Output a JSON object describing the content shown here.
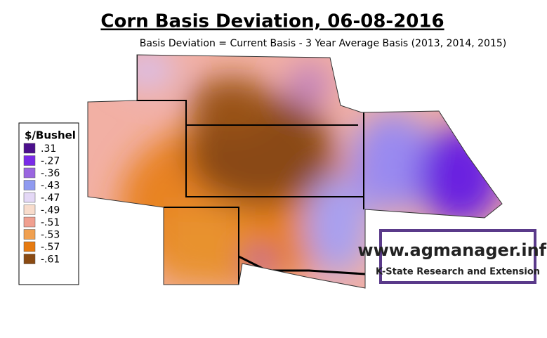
{
  "title": "Corn Basis Deviation, 06-08-2016",
  "subtitle": "Basis Deviation = Current Basis - 3 Year Average Basis (2013, 2014, 2015)",
  "legend": {
    "title": "$/Bushel",
    "items": [
      {
        "label": ".31",
        "color": "#4b0f8c"
      },
      {
        "label": "-.27",
        "color": "#7a2be8"
      },
      {
        "label": "-.36",
        "color": "#9a66e0"
      },
      {
        "label": "-.43",
        "color": "#8f9af0"
      },
      {
        "label": "-.47",
        "color": "#e4d8f6"
      },
      {
        "label": "-.49",
        "color": "#f8dccc"
      },
      {
        "label": "-.51",
        "color": "#f0a090"
      },
      {
        "label": "-.53",
        "color": "#f0a050"
      },
      {
        "label": "-.57",
        "color": "#e67a10"
      },
      {
        "label": "-.61",
        "color": "#8a4a12"
      }
    ]
  },
  "logo": {
    "url": "www.agmanager.info",
    "org": "K-State Research and Extension"
  }
}
